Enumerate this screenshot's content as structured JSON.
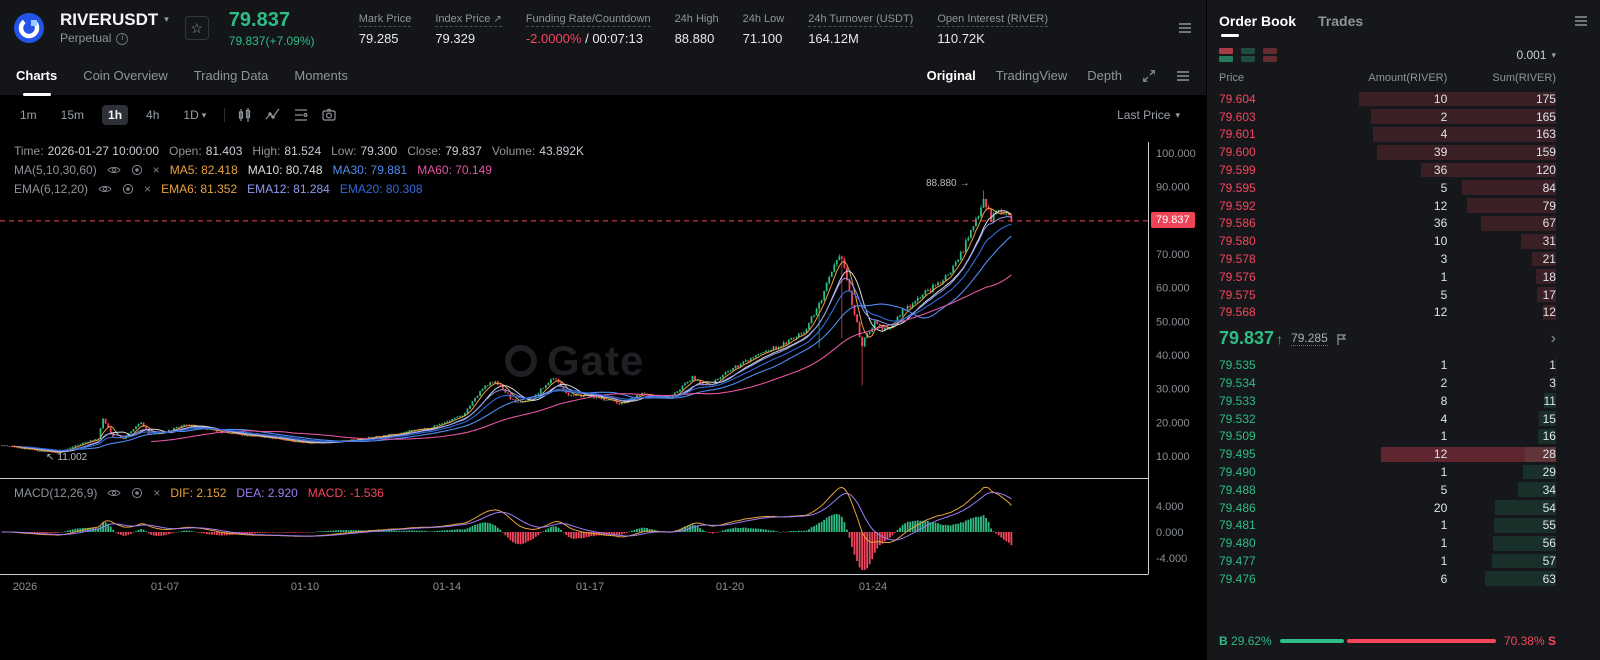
{
  "colors": {
    "up": "#2ebd85",
    "down": "#f6465d",
    "accent_red": "#ef4457",
    "ma5": "#e8a33d",
    "ma10": "#d9dde3",
    "ma30": "#4f8bf0",
    "ma60": "#e255a2",
    "ema6": "#e8a33d",
    "ema12": "#8f9bf2",
    "ema20": "#2f6bd8",
    "dif": "#e8a33d",
    "dea": "#9d7df2"
  },
  "icons": {
    "caret": "▾",
    "external": "↗",
    "star": "☆",
    "close": "×",
    "up_arrow": "↑",
    "chevron": "›",
    "arrow_right": "→",
    "arrow_upleft": "↖"
  },
  "header": {
    "symbol": "RIVERUSDT",
    "market_type": "Perpetual",
    "last_price": "79.837",
    "price_change": "79.837(+7.09%)",
    "stats": [
      {
        "label": "Mark Price",
        "value": "79.285"
      },
      {
        "label": "Index Price",
        "value": "79.329"
      },
      {
        "label": "Funding Rate/Countdown",
        "rate": "-2.0000%",
        "countdown": "/ 00:07:13"
      },
      {
        "label": "24h High",
        "value": "88.880"
      },
      {
        "label": "24h Low",
        "value": "71.100"
      },
      {
        "label": "24h Turnover (USDT)",
        "value": "164.12M"
      },
      {
        "label": "Open Interest (RIVER)",
        "value": "110.72K"
      }
    ]
  },
  "subnav": {
    "tabs": [
      "Charts",
      "Coin Overview",
      "Trading Data",
      "Moments"
    ],
    "right_tabs": [
      "Original",
      "TradingView",
      "Depth"
    ]
  },
  "toolbar": {
    "intervals": [
      "1m",
      "15m",
      "1h",
      "4h",
      "1D"
    ],
    "active": "1h",
    "last_price_label": "Last Price"
  },
  "chart_info": {
    "ohlc": [
      {
        "label": "Time:",
        "value": "2026-01-27 10:00:00"
      },
      {
        "label": "Open:",
        "value": "81.403"
      },
      {
        "label": "High:",
        "value": "81.524"
      },
      {
        "label": "Low:",
        "value": "79.300"
      },
      {
        "label": "Close:",
        "value": "79.837"
      },
      {
        "label": "Volume:",
        "value": "43.892K"
      }
    ],
    "ma": {
      "name": "MA(5,10,30,60)",
      "items": [
        {
          "text": "MA5: 82.418"
        },
        {
          "text": "MA10: 80.748"
        },
        {
          "text": "MA30: 79.881"
        },
        {
          "text": "MA60: 70.149"
        }
      ]
    },
    "ema": {
      "name": "EMA(6,12,20)",
      "items": [
        {
          "text": "EMA6: 81.352"
        },
        {
          "text": "EMA12: 81.284"
        },
        {
          "text": "EMA20: 80.308"
        }
      ]
    },
    "macd": {
      "name": "MACD(12,26,9)",
      "items": [
        {
          "text": "DIF: 2.152"
        },
        {
          "text": "DEA: 2.920"
        },
        {
          "text": "MACD: -1.536"
        }
      ]
    }
  },
  "chart_data": {
    "type": "candlestick",
    "symbol": "RIVERUSDT",
    "interval": "1h",
    "watermark": "Gate",
    "y_range": [
      10,
      100
    ],
    "y_ticks": [
      {
        "v": 100,
        "label": "100.000"
      },
      {
        "v": 90,
        "label": "90.000"
      },
      {
        "v": 80,
        "label": "80.000"
      },
      {
        "v": 70,
        "label": "70.000"
      },
      {
        "v": 60,
        "label": "60.000"
      },
      {
        "v": 50,
        "label": "50.000"
      },
      {
        "v": 40,
        "label": "40.000"
      },
      {
        "v": 30,
        "label": "30.000"
      },
      {
        "v": 20,
        "label": "20.000"
      },
      {
        "v": 10,
        "label": "10.000"
      }
    ],
    "macd_ticks": [
      {
        "v": 4,
        "label": "4.000"
      },
      {
        "v": 0,
        "label": "0.000"
      },
      {
        "v": -4,
        "label": "-4.000"
      }
    ],
    "x_ticks": [
      {
        "x": 25,
        "label": "2026"
      },
      {
        "x": 165,
        "label": "01-07"
      },
      {
        "x": 305,
        "label": "01-10"
      },
      {
        "x": 447,
        "label": "01-14"
      },
      {
        "x": 590,
        "label": "01-17"
      },
      {
        "x": 730,
        "label": "01-20"
      },
      {
        "x": 873,
        "label": "01-24"
      }
    ],
    "price_line": {
      "value": 79.837,
      "label": "79.837"
    },
    "annotations": [
      {
        "text": "88.880"
      },
      {
        "text": "11.002"
      }
    ],
    "candle_count": 400,
    "anchors": [
      [
        0,
        13.2
      ],
      [
        10,
        12.0
      ],
      [
        22,
        10.9
      ],
      [
        30,
        13.4
      ],
      [
        38,
        15.2
      ],
      [
        40,
        21.0
      ],
      [
        44,
        15.6
      ],
      [
        48,
        15.2
      ],
      [
        55,
        20.0
      ],
      [
        58,
        16.4
      ],
      [
        63,
        16.8
      ],
      [
        73,
        19.4
      ],
      [
        80,
        18.0
      ],
      [
        91,
        16.6
      ],
      [
        105,
        15.4
      ],
      [
        121,
        13.8
      ],
      [
        137,
        14.6
      ],
      [
        154,
        16.4
      ],
      [
        170,
        18.6
      ],
      [
        182,
        22.0
      ],
      [
        190,
        30.0
      ],
      [
        195,
        32.4
      ],
      [
        203,
        25.6
      ],
      [
        210,
        27.2
      ],
      [
        218,
        33.4
      ],
      [
        224,
        28.2
      ],
      [
        234,
        27.6
      ],
      [
        244,
        25.6
      ],
      [
        253,
        28.4
      ],
      [
        263,
        27.0
      ],
      [
        273,
        33.2
      ],
      [
        279,
        30.8
      ],
      [
        289,
        36.0
      ],
      [
        299,
        40.2
      ],
      [
        309,
        43.2
      ],
      [
        317,
        47.0
      ],
      [
        323,
        55.0
      ],
      [
        329,
        66.0
      ],
      [
        332,
        69.5
      ],
      [
        336,
        55.0
      ],
      [
        340,
        43.0
      ],
      [
        345,
        50.0
      ],
      [
        350,
        47.0
      ],
      [
        356,
        53.0
      ],
      [
        362,
        57.0
      ],
      [
        368,
        60.0
      ],
      [
        374,
        64.0
      ],
      [
        379,
        70.0
      ],
      [
        384,
        78.0
      ],
      [
        388,
        87.0
      ],
      [
        391,
        80.5
      ],
      [
        394,
        83.0
      ],
      [
        397,
        81.4
      ],
      [
        399,
        80.6
      ]
    ],
    "wick_overrides": {
      "323": {
        "low": 42.0
      },
      "332": {
        "low": 45.0
      },
      "340": {
        "low": 31.0
      },
      "388": {
        "high": 88.88
      }
    },
    "last_candle": {
      "o": 81.403,
      "h": 81.524,
      "l": 79.3,
      "c": 79.837
    }
  },
  "orderbook": {
    "tabs": [
      "Order Book",
      "Trades"
    ],
    "precision": "0.001",
    "columns": [
      "Price",
      "Amount(RIVER)",
      "Sum(RIVER)"
    ],
    "depth_scale": 300,
    "flash_price": "79.495",
    "asks": [
      [
        "79.604",
        "10",
        175
      ],
      [
        "79.603",
        "2",
        165
      ],
      [
        "79.601",
        "4",
        163
      ],
      [
        "79.600",
        "39",
        159
      ],
      [
        "79.599",
        "36",
        120
      ],
      [
        "79.595",
        "5",
        84
      ],
      [
        "79.592",
        "12",
        79
      ],
      [
        "79.586",
        "36",
        67
      ],
      [
        "79.580",
        "10",
        31
      ],
      [
        "79.578",
        "3",
        21
      ],
      [
        "79.576",
        "1",
        18
      ],
      [
        "79.575",
        "5",
        17
      ],
      [
        "79.568",
        "12",
        12
      ]
    ],
    "mid": {
      "price": "79.837",
      "direction": "up",
      "mark": "79.285"
    },
    "bids": [
      [
        "79.535",
        "1",
        1
      ],
      [
        "79.534",
        "2",
        3
      ],
      [
        "79.533",
        "8",
        11
      ],
      [
        "79.532",
        "4",
        15
      ],
      [
        "79.509",
        "1",
        16
      ],
      [
        "79.495",
        "12",
        28
      ],
      [
        "79.490",
        "1",
        29
      ],
      [
        "79.488",
        "5",
        34
      ],
      [
        "79.486",
        "20",
        54
      ],
      [
        "79.481",
        "1",
        55
      ],
      [
        "79.480",
        "1",
        56
      ],
      [
        "79.477",
        "1",
        57
      ],
      [
        "79.476",
        "6",
        63
      ]
    ],
    "ratio": {
      "buy_label": "B",
      "buy": "29.62%",
      "buy_pct": 29.62,
      "sell": "70.38%",
      "sell_label": "S"
    }
  }
}
